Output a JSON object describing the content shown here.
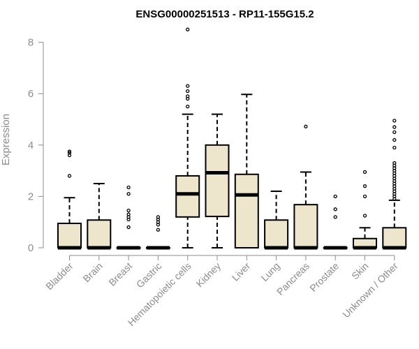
{
  "chart_data": {
    "type": "boxplot",
    "title": "ENSG00000251513 - RP11-155G15.2",
    "xlabel": "",
    "ylabel": "Expression",
    "ylim": [
      0,
      8
    ],
    "yticks": [
      "0",
      "2",
      "4",
      "6",
      "8"
    ],
    "grid": false,
    "legend": "none",
    "box_fill": "#ede6cc",
    "categories": [
      "Bladder",
      "Brain",
      "Breast",
      "Gastric",
      "Hematopoietic cells",
      "Kidney",
      "Liver",
      "Lung",
      "Pancreas",
      "Prostate",
      "Skin",
      "Unknown / Other"
    ],
    "boxes": [
      {
        "min": 0,
        "q1": 0,
        "median": 0,
        "q3": 0.95,
        "max": 1.95,
        "outliers": [
          2.8,
          3.6,
          3.7,
          3.75
        ]
      },
      {
        "min": 0,
        "q1": 0,
        "median": 0,
        "q3": 1.08,
        "max": 2.5,
        "outliers": []
      },
      {
        "min": 0,
        "q1": 0,
        "median": 0,
        "q3": 0,
        "max": 0,
        "outliers": [
          0.8,
          1.1,
          1.2,
          1.3,
          1.45,
          2.1,
          2.35
        ]
      },
      {
        "min": 0,
        "q1": 0,
        "median": 0,
        "q3": 0,
        "max": 0,
        "outliers": [
          0.7,
          0.9,
          1.0,
          1.1,
          1.2
        ]
      },
      {
        "min": 0,
        "q1": 1.2,
        "median": 2.1,
        "q3": 2.8,
        "max": 5.2,
        "outliers": [
          5.5,
          5.8,
          5.9,
          6.1,
          6.3,
          8.5
        ]
      },
      {
        "min": 0,
        "q1": 1.22,
        "median": 2.92,
        "q3": 4.0,
        "max": 5.2,
        "outliers": []
      },
      {
        "min": 0,
        "q1": 0,
        "median": 2.06,
        "q3": 2.86,
        "max": 5.97,
        "outliers": []
      },
      {
        "min": 0,
        "q1": 0,
        "median": 0,
        "q3": 1.08,
        "max": 2.2,
        "outliers": []
      },
      {
        "min": 0,
        "q1": 0,
        "median": 0,
        "q3": 1.68,
        "max": 2.95,
        "outliers": [
          4.72
        ]
      },
      {
        "min": 0,
        "q1": 0,
        "median": 0,
        "q3": 0,
        "max": 0,
        "outliers": [
          1.2,
          1.5,
          2.0
        ]
      },
      {
        "min": 0,
        "q1": 0,
        "median": 0,
        "q3": 0.36,
        "max": 0.78,
        "outliers": [
          1.25,
          2.0,
          2.4,
          2.95
        ]
      },
      {
        "min": 0,
        "q1": 0,
        "median": 0,
        "q3": 0.78,
        "max": 1.85,
        "outliers": [
          1.9,
          2.0,
          2.1,
          2.2,
          2.3,
          2.4,
          2.5,
          2.6,
          2.7,
          2.8,
          2.9,
          3.0,
          3.1,
          3.2,
          3.3,
          3.9,
          4.2,
          4.5,
          4.7,
          4.95
        ]
      }
    ]
  }
}
